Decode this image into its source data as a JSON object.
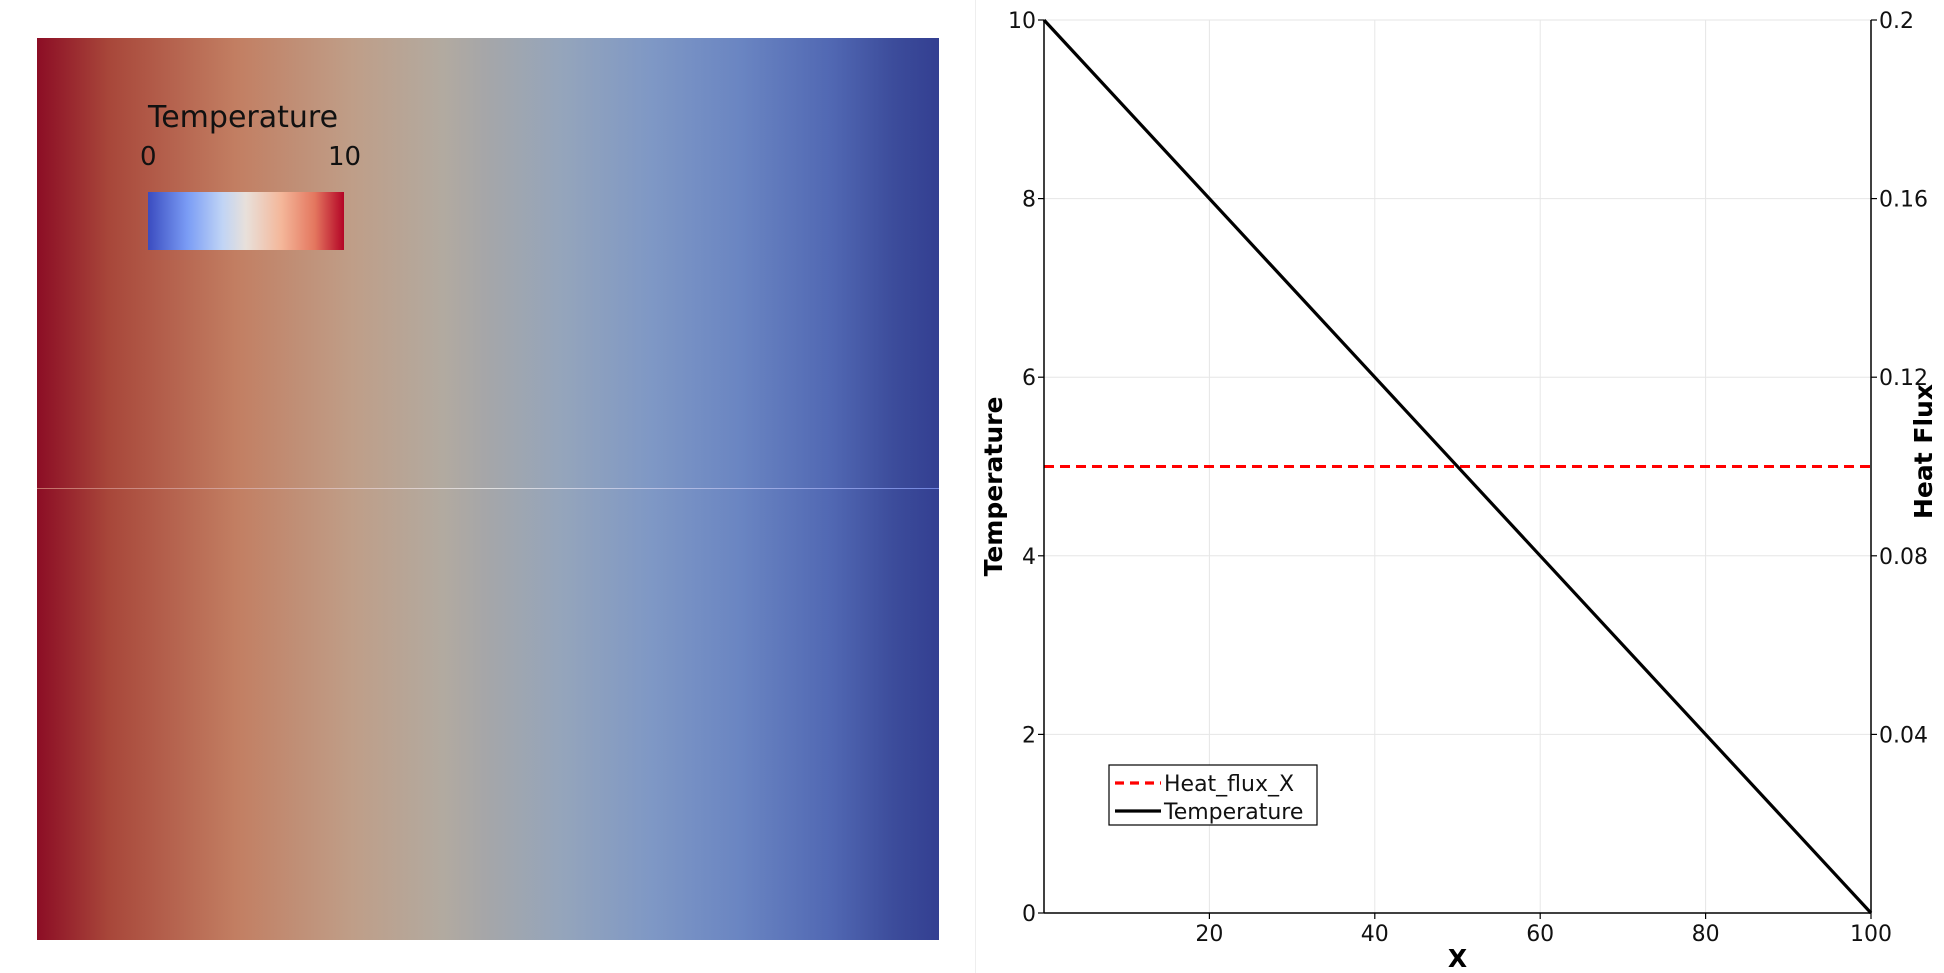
{
  "render_view": {
    "scalar_bar": {
      "title": "Temperature",
      "min_label": "0",
      "max_label": "10",
      "colormap": [
        "#3b4cc0",
        "#dddddd",
        "#b40426"
      ]
    },
    "field_colors": {
      "hot": "#8c0d25",
      "mid": "#a9a9a6",
      "cold": "#333f91"
    }
  },
  "chart_data": {
    "type": "line",
    "title": "",
    "xlabel": "X",
    "ylabel": "Temperature",
    "y2label": "Heat Flux",
    "xlim": [
      0,
      100
    ],
    "ylim": [
      0,
      10
    ],
    "y2lim": [
      0,
      0.2
    ],
    "x_ticks": [
      "20",
      "40",
      "60",
      "80",
      "100"
    ],
    "y_ticks": [
      "0",
      "2",
      "4",
      "6",
      "8",
      "10"
    ],
    "y2_ticks": [
      "0.04",
      "0.08",
      "0.12",
      "0.16",
      "0.2"
    ],
    "grid": true,
    "legend_position": "bottom-left",
    "series": [
      {
        "name": "Heat_flux_X",
        "axis": "right",
        "color": "#ff0000",
        "style": "dashed",
        "x": [
          0,
          100
        ],
        "y": [
          0.1,
          0.1
        ]
      },
      {
        "name": "Temperature",
        "axis": "left",
        "color": "#000000",
        "style": "solid",
        "x": [
          0,
          100
        ],
        "y": [
          10,
          0
        ]
      }
    ]
  }
}
